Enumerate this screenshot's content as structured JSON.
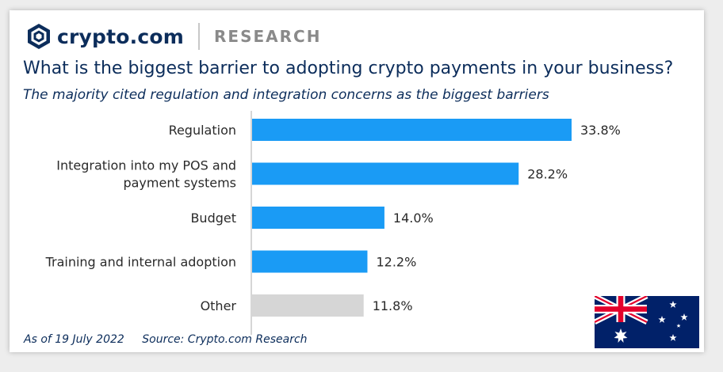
{
  "brand": {
    "name": "crypto.com",
    "section": "RESEARCH"
  },
  "title": "What is the biggest barrier to adopting crypto payments in your business?",
  "subtitle": "The majority cited regulation and integration concerns as the biggest barriers",
  "footer": {
    "date": "As of 19 July 2022",
    "source": "Source: Crypto.com Research"
  },
  "colors": {
    "bar": "#1a9bf5",
    "bar_other": "#d6d6d6",
    "axis": "#c8c8c8",
    "text": "#2a2a2a",
    "navy": "#0c2d5b"
  },
  "chart_data": {
    "type": "bar",
    "orientation": "horizontal",
    "categories": [
      [
        "Regulation"
      ],
      [
        "Integration into my POS and",
        "payment systems"
      ],
      [
        "Budget"
      ],
      [
        "Training and internal adoption"
      ],
      [
        "Other"
      ]
    ],
    "values": [
      33.8,
      28.2,
      14.0,
      12.2,
      11.8
    ],
    "value_labels": [
      "33.8%",
      "28.2%",
      "14.0%",
      "12.2%",
      "11.8%"
    ],
    "highlight": [
      true,
      true,
      true,
      true,
      false
    ],
    "xlim": [
      0,
      40
    ],
    "grid": false,
    "legend": "none"
  },
  "flag": {
    "icon": "australia-flag-icon"
  }
}
